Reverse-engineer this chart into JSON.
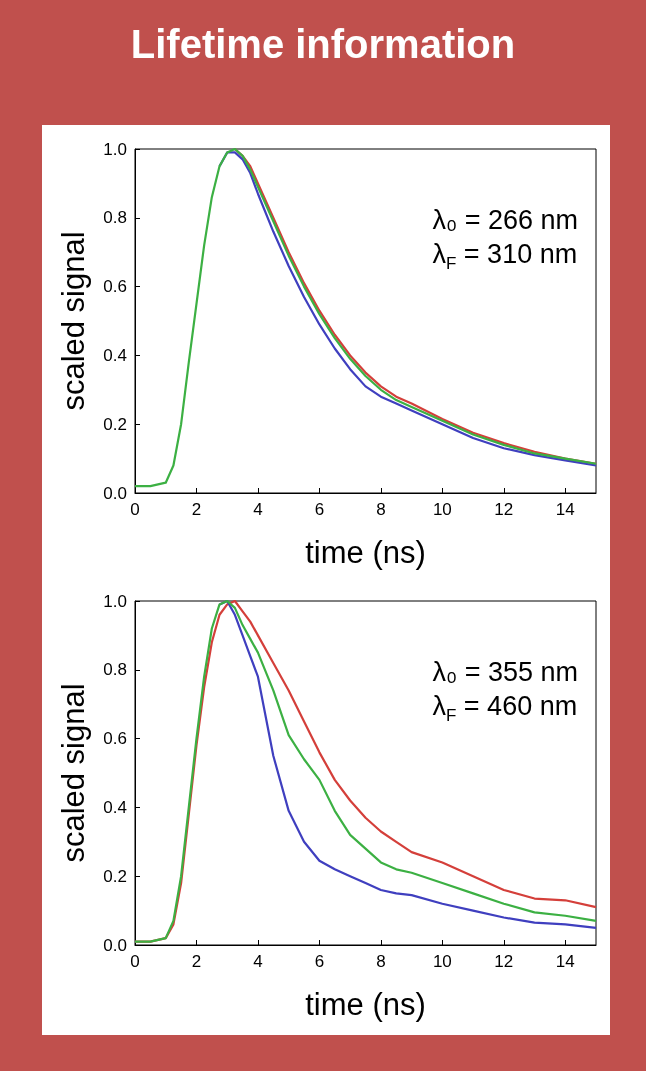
{
  "chart_data": [
    {
      "type": "line",
      "title": "Lifetime information",
      "xlabel": "time (ns)",
      "ylabel": "scaled signal",
      "annotations": [
        "λ₀ = 266 nm",
        "λ$_{F}$ = 310 nm"
      ],
      "x": [
        0,
        0.5,
        1,
        1.25,
        1.5,
        1.75,
        2,
        2.25,
        2.5,
        2.75,
        3,
        3.25,
        3.5,
        3.75,
        4,
        4.5,
        5,
        5.5,
        6,
        6.5,
        7,
        7.5,
        8,
        8.5,
        9,
        10,
        11,
        12,
        13,
        14,
        15
      ],
      "series": [
        {
          "color": "#d43f3a",
          "values": [
            null,
            null,
            null,
            null,
            null,
            null,
            null,
            null,
            null,
            null,
            null,
            1.0,
            0.98,
            0.95,
            0.9,
            0.8,
            0.7,
            0.61,
            0.53,
            0.46,
            0.4,
            0.35,
            0.31,
            0.28,
            0.26,
            0.215,
            0.175,
            0.145,
            0.12,
            0.1,
            0.085
          ]
        },
        {
          "color": "#3f3fbf",
          "values": [
            null,
            null,
            null,
            null,
            null,
            null,
            null,
            null,
            null,
            0.95,
            0.99,
            0.99,
            0.97,
            0.93,
            0.87,
            0.76,
            0.66,
            0.57,
            0.49,
            0.42,
            0.36,
            0.31,
            0.28,
            0.26,
            0.24,
            0.2,
            0.16,
            0.13,
            0.11,
            0.095,
            0.08
          ]
        },
        {
          "color": "#3cb043",
          "values": [
            0.02,
            0.02,
            0.03,
            0.08,
            0.2,
            0.38,
            0.55,
            0.72,
            0.86,
            0.95,
            0.99,
            1.0,
            0.98,
            0.94,
            0.89,
            0.79,
            0.69,
            0.6,
            0.52,
            0.45,
            0.39,
            0.34,
            0.3,
            0.27,
            0.25,
            0.21,
            0.17,
            0.14,
            0.115,
            0.1,
            0.085
          ]
        }
      ],
      "xlim": [
        0,
        15
      ],
      "xticks": [
        0,
        2,
        4,
        6,
        8,
        10,
        12,
        14
      ],
      "ylim": [
        0,
        1
      ],
      "yticks": [
        {
          "value": 0,
          "label": "0.0"
        },
        {
          "value": 0.2,
          "label": "0.2"
        },
        {
          "value": 0.4,
          "label": "0.4"
        },
        {
          "value": 0.6,
          "label": "0.6"
        },
        {
          "value": 0.8,
          "label": "0.8"
        },
        {
          "value": 1,
          "label": "1.0"
        }
      ]
    },
    {
      "type": "line",
      "xlabel": "time (ns)",
      "ylabel": "scaled signal",
      "annotations": [
        "λ₀ = 355 nm",
        "λ$_{F}$ = 460 nm"
      ],
      "x": [
        0,
        0.5,
        1,
        1.25,
        1.5,
        1.75,
        2,
        2.25,
        2.5,
        2.75,
        3,
        3.25,
        3.5,
        3.75,
        4,
        4.5,
        5,
        5.5,
        6,
        6.5,
        7,
        7.5,
        8,
        8.5,
        9,
        10,
        11,
        12,
        13,
        14,
        15
      ],
      "series": [
        {
          "color": "#d43f3a",
          "values": [
            0.01,
            0.01,
            0.02,
            0.06,
            0.18,
            0.38,
            0.58,
            0.75,
            0.88,
            0.96,
            0.99,
            1.0,
            0.97,
            0.94,
            0.9,
            0.82,
            0.74,
            0.65,
            0.56,
            0.48,
            0.42,
            0.37,
            0.33,
            0.3,
            0.27,
            0.24,
            0.2,
            0.16,
            0.135,
            0.13,
            0.11
          ]
        },
        {
          "color": "#3f3fbf",
          "values": [
            null,
            null,
            null,
            null,
            null,
            null,
            null,
            null,
            null,
            0.99,
            1.0,
            0.96,
            0.9,
            0.84,
            0.78,
            0.55,
            0.39,
            0.3,
            0.245,
            0.22,
            0.2,
            0.18,
            0.16,
            0.15,
            0.145,
            0.12,
            0.1,
            0.08,
            0.065,
            0.06,
            0.05
          ]
        },
        {
          "color": "#3cb043",
          "values": [
            0.01,
            0.01,
            0.02,
            0.07,
            0.2,
            0.4,
            0.6,
            0.78,
            0.92,
            0.99,
            1.0,
            0.98,
            0.93,
            0.89,
            0.85,
            0.74,
            0.61,
            0.54,
            0.48,
            0.39,
            0.32,
            0.28,
            0.24,
            0.22,
            0.21,
            0.18,
            0.15,
            0.12,
            0.095,
            0.085,
            0.07
          ]
        }
      ],
      "xlim": [
        0,
        15
      ],
      "xticks": [
        0,
        2,
        4,
        6,
        8,
        10,
        12,
        14
      ],
      "ylim": [
        0,
        1
      ],
      "yticks": [
        {
          "value": 0,
          "label": "0.0"
        },
        {
          "value": 0.2,
          "label": "0.2"
        },
        {
          "value": 0.4,
          "label": "0.4"
        },
        {
          "value": 0.6,
          "label": "0.6"
        },
        {
          "value": 0.8,
          "label": "0.8"
        },
        {
          "value": 1,
          "label": "1.0"
        }
      ]
    }
  ]
}
